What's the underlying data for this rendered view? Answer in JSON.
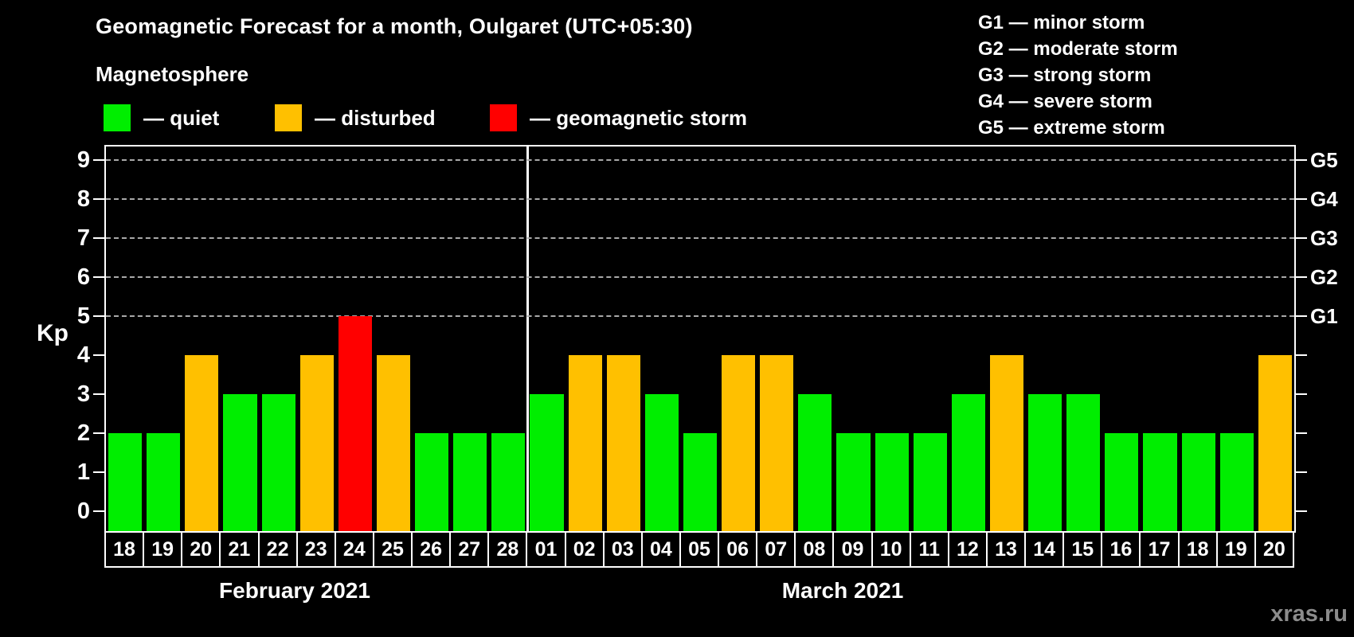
{
  "header": {
    "title": "Geomagnetic Forecast for a month, Oulgaret (UTC+05:30)",
    "subtitle": "Magnetosphere"
  },
  "legend": {
    "items": [
      {
        "id": "quiet",
        "label": "— quiet",
        "color": "#00ee00"
      },
      {
        "id": "disturbed",
        "label": "— disturbed",
        "color": "#ffc000"
      },
      {
        "id": "storm",
        "label": "— geomagnetic storm",
        "color": "#ff0000"
      }
    ]
  },
  "g_scale_legend": {
    "items": [
      "G1 — minor storm",
      "G2 — moderate storm",
      "G3 — strong storm",
      "G4 — severe storm",
      "G5 — extreme storm"
    ]
  },
  "watermark": "xras.ru",
  "chart_data": {
    "type": "bar",
    "title": "Geomagnetic Forecast for a month, Oulgaret (UTC+05:30)",
    "ylabel": "Kp",
    "ylim": [
      -0.5,
      9.35
    ],
    "yticks": [
      0,
      1,
      2,
      3,
      4,
      5,
      6,
      7,
      8,
      9
    ],
    "gridlines": [
      5,
      6,
      7,
      8,
      9
    ],
    "grid": "dashed horizontal at Kp 5-9 only",
    "right_axis_labels": [
      {
        "text": "G1",
        "kp": 5
      },
      {
        "text": "G2",
        "kp": 6
      },
      {
        "text": "G3",
        "kp": 7
      },
      {
        "text": "G4",
        "kp": 8
      },
      {
        "text": "G5",
        "kp": 9
      }
    ],
    "status_colors": {
      "quiet": "#00ee00",
      "disturbed": "#ffc000",
      "storm": "#ff0000"
    },
    "months": [
      {
        "label": "February 2021",
        "days": [
          {
            "day": "18",
            "kp": 2,
            "status": "quiet"
          },
          {
            "day": "19",
            "kp": 2,
            "status": "quiet"
          },
          {
            "day": "20",
            "kp": 4,
            "status": "disturbed"
          },
          {
            "day": "21",
            "kp": 3,
            "status": "quiet"
          },
          {
            "day": "22",
            "kp": 3,
            "status": "quiet"
          },
          {
            "day": "23",
            "kp": 4,
            "status": "disturbed"
          },
          {
            "day": "24",
            "kp": 5,
            "status": "storm"
          },
          {
            "day": "25",
            "kp": 4,
            "status": "disturbed"
          },
          {
            "day": "26",
            "kp": 2,
            "status": "quiet"
          },
          {
            "day": "27",
            "kp": 2,
            "status": "quiet"
          },
          {
            "day": "28",
            "kp": 2,
            "status": "quiet"
          }
        ]
      },
      {
        "label": "March 2021",
        "days": [
          {
            "day": "01",
            "kp": 3,
            "status": "quiet"
          },
          {
            "day": "02",
            "kp": 4,
            "status": "disturbed"
          },
          {
            "day": "03",
            "kp": 4,
            "status": "disturbed"
          },
          {
            "day": "04",
            "kp": 3,
            "status": "quiet"
          },
          {
            "day": "05",
            "kp": 2,
            "status": "quiet"
          },
          {
            "day": "06",
            "kp": 4,
            "status": "disturbed"
          },
          {
            "day": "07",
            "kp": 4,
            "status": "disturbed"
          },
          {
            "day": "08",
            "kp": 3,
            "status": "quiet"
          },
          {
            "day": "09",
            "kp": 2,
            "status": "quiet"
          },
          {
            "day": "10",
            "kp": 2,
            "status": "quiet"
          },
          {
            "day": "11",
            "kp": 2,
            "status": "quiet"
          },
          {
            "day": "12",
            "kp": 3,
            "status": "quiet"
          },
          {
            "day": "13",
            "kp": 4,
            "status": "disturbed"
          },
          {
            "day": "14",
            "kp": 3,
            "status": "quiet"
          },
          {
            "day": "15",
            "kp": 3,
            "status": "quiet"
          },
          {
            "day": "16",
            "kp": 2,
            "status": "quiet"
          },
          {
            "day": "17",
            "kp": 2,
            "status": "quiet"
          },
          {
            "day": "18",
            "kp": 2,
            "status": "quiet"
          },
          {
            "day": "19",
            "kp": 2,
            "status": "quiet"
          },
          {
            "day": "20",
            "kp": 4,
            "status": "disturbed"
          }
        ]
      }
    ]
  }
}
